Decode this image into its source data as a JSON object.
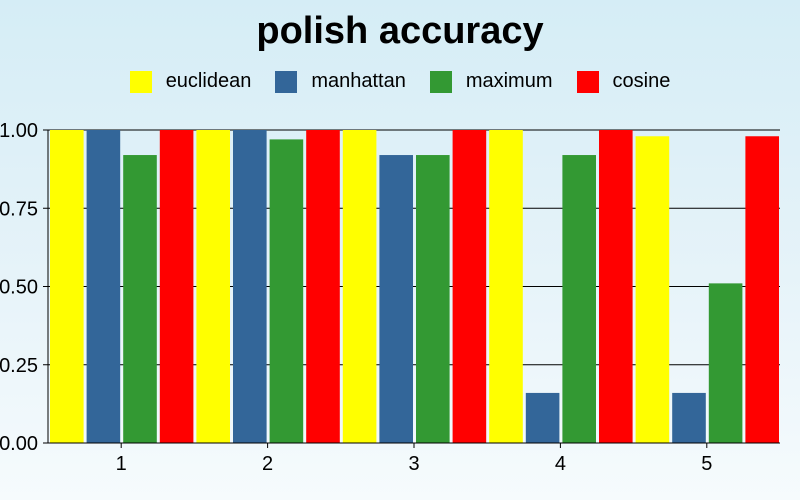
{
  "chart_data": {
    "type": "bar",
    "title": "polish accuracy",
    "xlabel": "",
    "ylabel": "",
    "categories": [
      "1",
      "2",
      "3",
      "4",
      "5"
    ],
    "ylim": [
      0,
      1.0
    ],
    "yticks": [
      "0.00",
      "0.25",
      "0.50",
      "0.75",
      "1.00"
    ],
    "ytick_values": [
      0,
      0.25,
      0.5,
      0.75,
      1.0
    ],
    "grid": true,
    "legend_position": "top-center",
    "series": [
      {
        "name": "euclidean",
        "color": "#ffff00",
        "values": [
          1.0,
          1.0,
          1.0,
          1.0,
          0.98
        ]
      },
      {
        "name": "manhattan",
        "color": "#336699",
        "values": [
          1.0,
          1.0,
          0.92,
          0.16,
          0.16
        ]
      },
      {
        "name": "maximum",
        "color": "#339933",
        "values": [
          0.92,
          0.97,
          0.92,
          0.92,
          0.51
        ]
      },
      {
        "name": "cosine",
        "color": "#ff0000",
        "values": [
          1.0,
          1.0,
          1.0,
          1.0,
          0.98
        ]
      }
    ]
  }
}
